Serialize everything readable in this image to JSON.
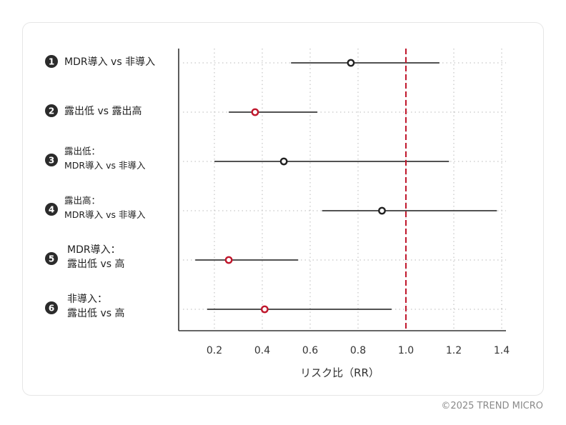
{
  "chart_data": {
    "type": "forest-plot",
    "xlabel": "リスク比（RR）",
    "xticks": [
      "0.2",
      "0.4",
      "0.6",
      "0.8",
      "1.0",
      "1.2",
      "1.4"
    ],
    "xlim": [
      0.05,
      1.47
    ],
    "reference_line": 1.0,
    "colors": {
      "highlight": "#c0172c",
      "normal": "#222222",
      "line": "#3a3a3a"
    },
    "rows": [
      {
        "number": "1",
        "label": [
          "MDR導入 vs 非導入"
        ],
        "estimate": 0.77,
        "lower": 0.52,
        "upper": 1.14,
        "highlight": false
      },
      {
        "number": "2",
        "label": [
          "露出低 vs 露出高"
        ],
        "estimate": 0.37,
        "lower": 0.26,
        "upper": 0.63,
        "highlight": true
      },
      {
        "number": "3",
        "label": [
          "露出低：",
          "MDR導入 vs 非導入"
        ],
        "estimate": 0.49,
        "lower": 0.2,
        "upper": 1.18,
        "highlight": false
      },
      {
        "number": "4",
        "label": [
          "露出高：",
          "MDR導入 vs 非導入"
        ],
        "estimate": 0.9,
        "lower": 0.65,
        "upper": 1.38,
        "highlight": false
      },
      {
        "number": "5",
        "label": [
          "MDR導入：",
          "露出低 vs 高"
        ],
        "estimate": 0.26,
        "lower": 0.12,
        "upper": 0.55,
        "highlight": true
      },
      {
        "number": "6",
        "label": [
          "非導入：",
          "露出低 vs 高"
        ],
        "estimate": 0.41,
        "lower": 0.17,
        "upper": 0.94,
        "highlight": true
      }
    ]
  },
  "footer": {
    "copyright": "©2025 TREND MICRO"
  }
}
